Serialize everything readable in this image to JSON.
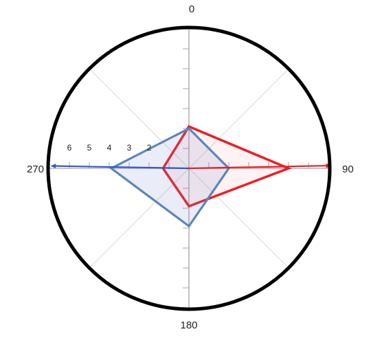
{
  "chart_data": {
    "type": "radar",
    "angle_labels": [
      "0",
      "90",
      "180",
      "270"
    ],
    "angles_deg": [
      0,
      90,
      180,
      270
    ],
    "radial_tick_labels": [
      "2",
      "3",
      "4",
      "5",
      "6"
    ],
    "rlim": [
      0,
      7
    ],
    "grid": true,
    "series": [
      {
        "angles_deg": [
          0,
          90,
          180,
          270
        ],
        "values": [
          2.1,
          5,
          1.9,
          1.3
        ],
        "color": "#ee1c25",
        "fill": "#ee1c25",
        "fill_opacity": 0.06,
        "arrow_value": 7.1,
        "arrow_deg": 88.9
      },
      {
        "angles_deg": [
          0,
          90,
          180,
          270
        ],
        "values": [
          2,
          2,
          2.9,
          3.9
        ],
        "color": "#5b86b8",
        "fill": "#7f8fd0",
        "fill_opacity": 0.16,
        "arrow_value": 6.9,
        "arrow_deg": 271,
        "arrow_color": "#3355cc"
      }
    ]
  },
  "colors": {
    "outer_circle": "#000000",
    "axis": "#b5b5b5",
    "diagonal_grid": "#dddddd"
  }
}
